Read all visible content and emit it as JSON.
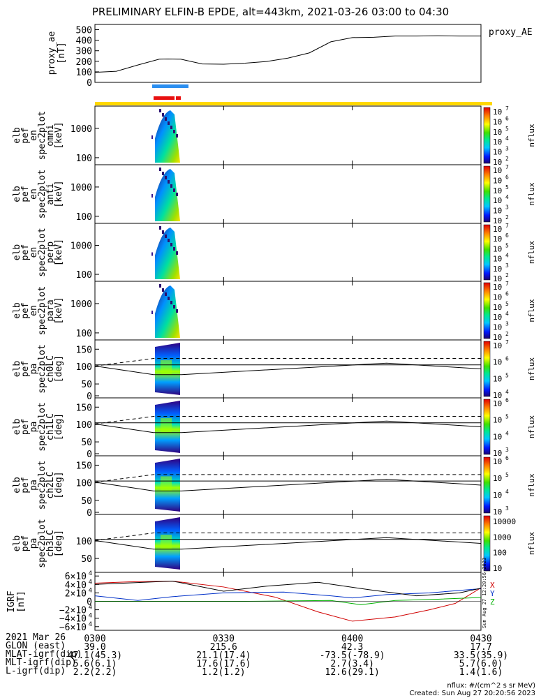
{
  "title": "PRELIMINARY ELFIN-B EPDE, alt=443km, 2021-03-26 03:00 to 04:30",
  "colors": {
    "zone_blue": "#2a8ef0",
    "zone_red": "#e81010",
    "bar_yellow": "#ffd800",
    "grf_x": "#d00000",
    "grf_y": "#0030c8",
    "grf_z": "#00b000"
  },
  "panels": [
    {
      "label": [
        "proxy_ae",
        "[nT]"
      ],
      "right_label": "proxy_AE",
      "ticks": [
        "500",
        "400",
        "300",
        "200",
        "100",
        "0"
      ]
    },
    {
      "label": [
        "elb",
        "pef",
        "en",
        "spec2plot",
        "omni",
        "[keV]"
      ],
      "ticks": [
        "1000",
        "100"
      ],
      "cbar": [
        "10",
        "7",
        "10",
        "6",
        "10",
        "5",
        "10",
        "4",
        "10",
        "3",
        "10",
        "2"
      ],
      "cbar_label": "nflux"
    },
    {
      "label": [
        "elb",
        "pef",
        "en",
        "spec2plot",
        "anti",
        "[keV]"
      ],
      "ticks": [
        "1000",
        "100"
      ],
      "cbar": [
        "10",
        "7",
        "10",
        "6",
        "10",
        "5",
        "10",
        "4",
        "10",
        "3",
        "10",
        "2"
      ],
      "cbar_label": "nflux"
    },
    {
      "label": [
        "elb",
        "pef",
        "en",
        "spec2plot",
        "perp",
        "[keV]"
      ],
      "ticks": [
        "1000",
        "100"
      ],
      "cbar": [
        "10",
        "7",
        "10",
        "6",
        "10",
        "5",
        "10",
        "4",
        "10",
        "3",
        "10",
        "2"
      ],
      "cbar_label": "nflux"
    },
    {
      "label": [
        "elb",
        "pef",
        "en",
        "spec2plot",
        "para",
        "[keV]"
      ],
      "ticks": [
        "1000",
        "100"
      ],
      "cbar": [
        "10",
        "7",
        "10",
        "6",
        "10",
        "5",
        "10",
        "4",
        "10",
        "3",
        "10",
        "2"
      ],
      "cbar_label": "nflux"
    },
    {
      "label": [
        "elb",
        "pef",
        "pa",
        "spec2plot",
        "ch0LC",
        "[deg]"
      ],
      "ticks": [
        "150",
        "100",
        "50",
        "0"
      ],
      "cbar": [
        "10",
        "7",
        "10",
        "6",
        "10",
        "5",
        "10",
        "4"
      ],
      "cbar_label": "nflux"
    },
    {
      "label": [
        "elb",
        "pef",
        "pa",
        "spec2plot",
        "ch1LC",
        "[deg]"
      ],
      "ticks": [
        "150",
        "100",
        "50",
        "0"
      ],
      "cbar": [
        "10",
        "6",
        "10",
        "5",
        "10",
        "4",
        "10",
        "3"
      ],
      "cbar_label": "nflux"
    },
    {
      "label": [
        "elb",
        "pef",
        "pa",
        "spec2plot",
        "ch2LC",
        "[deg]"
      ],
      "ticks": [
        "150",
        "100",
        "50",
        "0"
      ],
      "cbar": [
        "10",
        "6",
        "10",
        "5",
        "10",
        "4",
        "10",
        "3"
      ],
      "cbar_label": "nflux"
    },
    {
      "label": [
        "elb",
        "pef",
        "pa",
        "spec2plot",
        "ch3LC",
        "[deg]"
      ],
      "ticks": [
        "100",
        "50"
      ],
      "cbar": [
        "10000",
        "1000",
        "100",
        "10"
      ],
      "cbar_label": "nflux"
    },
    {
      "label": [
        "IGRF",
        "[nT]"
      ],
      "ticks": [
        "6×10",
        "4",
        "4×10",
        "4",
        "2×10",
        "4",
        "0",
        "−2×10",
        "4",
        "−4×10",
        "4",
        "−6×10",
        "4"
      ],
      "side_labels": [
        "X",
        "Y",
        "Z"
      ],
      "stamp": "Sun Aug 27 12:20:56 2023"
    }
  ],
  "chart_data": {
    "type": "line",
    "x_axis": {
      "ticks": [
        "0300",
        "0330",
        "0400",
        "0430"
      ]
    },
    "proxy_ae": {
      "x_minutes": [
        0,
        5,
        10,
        15,
        17,
        20,
        25,
        30,
        35,
        40,
        45,
        50,
        55,
        60,
        65,
        70,
        75,
        80,
        85,
        90
      ],
      "values": [
        95,
        105,
        165,
        220,
        222,
        220,
        175,
        172,
        182,
        198,
        230,
        280,
        385,
        425,
        428,
        440,
        440,
        442,
        440,
        440
      ]
    },
    "en_ticks": [
      "1000",
      "100"
    ],
    "pa_ticks": [
      "150",
      "100",
      "50",
      "0"
    ],
    "ephemeris": [
      {
        "label": "2021 Mar 26",
        "values": [
          "0300",
          "0330",
          "0400",
          "0430"
        ]
      },
      {
        "label": "GLON (east)",
        "values": [
          "39.0",
          "215.6",
          "42.3",
          "17.7"
        ]
      },
      {
        "label": "MLAT-igrf(dip)",
        "values": [
          "47.1(45.3)",
          "21.1(17.4)",
          "-73.5(-78.9)",
          "33.5(35.9)"
        ]
      },
      {
        "label": "MLT-igrf(dip)",
        "values": [
          "5.6(6.1)",
          "17.6(17.6)",
          "2.7(3.4)",
          "5.7(6.0)"
        ]
      },
      {
        "label": "L-igrf(dip)",
        "values": [
          "2.2(2.2)",
          "1.2(1.2)",
          "12.6(29.1)",
          "1.4(1.6)"
        ]
      }
    ]
  },
  "footer": {
    "units": "nflux: #/(cm^2 s sr MeV)",
    "created": "Created: Sun Aug 27 20:20:56 2023"
  }
}
